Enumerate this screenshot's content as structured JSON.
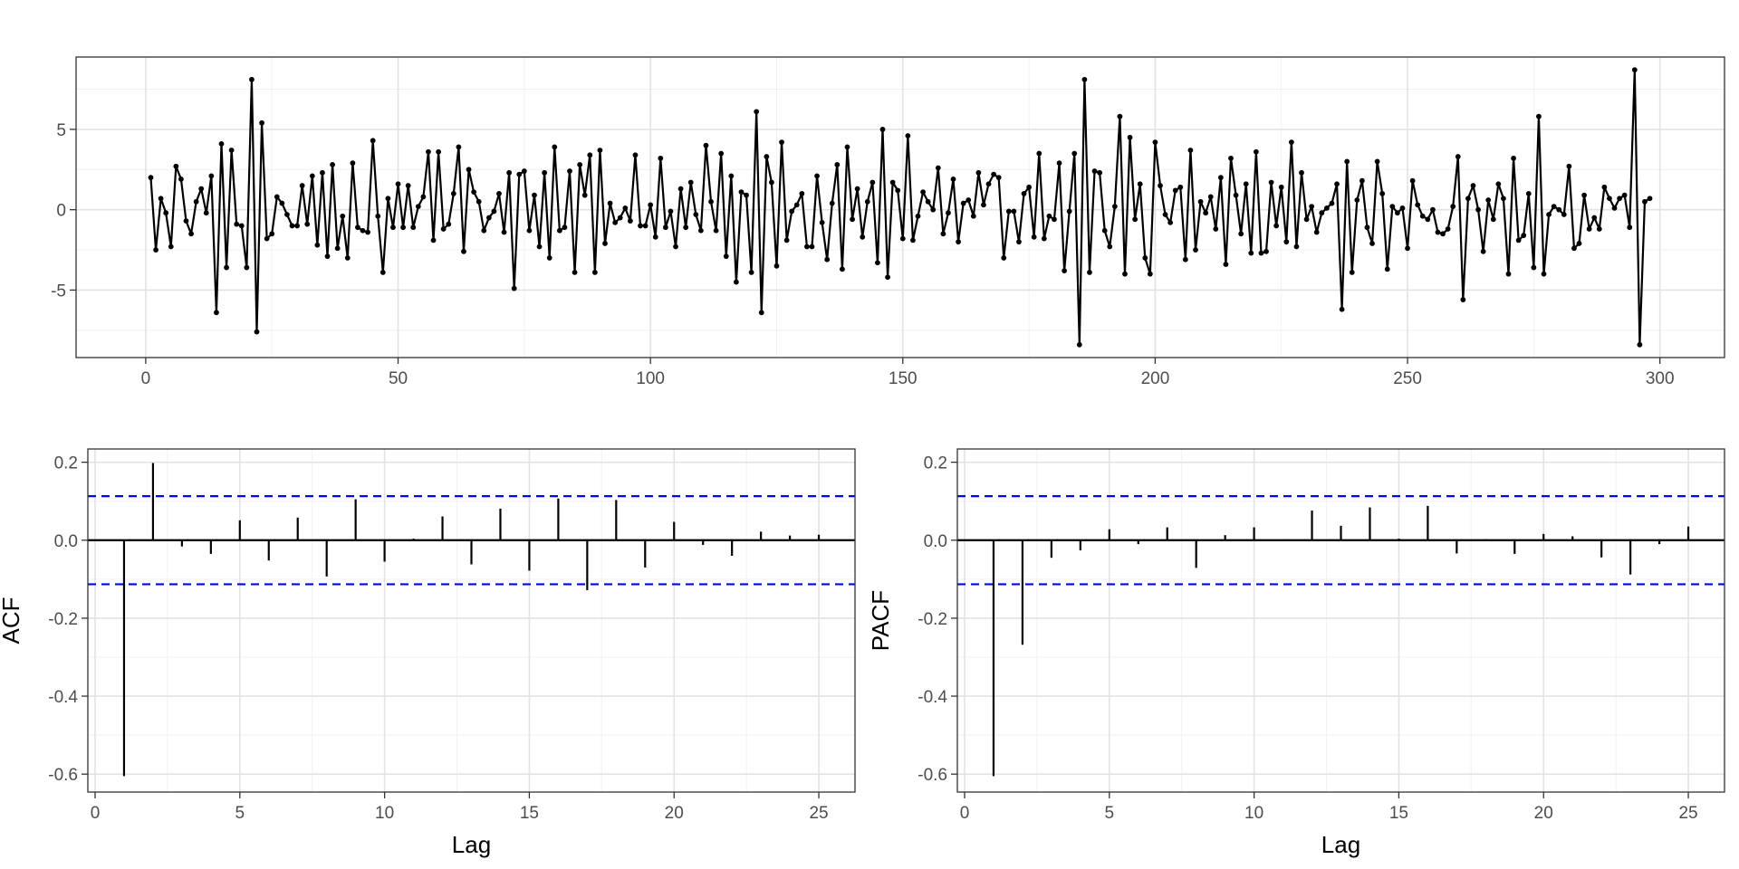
{
  "chart_data": [
    {
      "type": "line",
      "title": "",
      "xlabel": "",
      "ylabel": "",
      "xlim": [
        -13.8,
        312.8
      ],
      "ylim": [
        -9.2,
        9.5
      ],
      "xticks": [
        0,
        50,
        100,
        150,
        200,
        250,
        300
      ],
      "yticks": [
        -5,
        0,
        5
      ],
      "grid": true,
      "point_color": "#000000",
      "series": [
        {
          "x": [
            1,
            2,
            3,
            4,
            5,
            6,
            7,
            8,
            9,
            10,
            11,
            12,
            13,
            14,
            15,
            16,
            17,
            18,
            19,
            20,
            21,
            22,
            23,
            24,
            25,
            26,
            27,
            28,
            29,
            30,
            31,
            32,
            33,
            34,
            35,
            36,
            37,
            38,
            39,
            40,
            41,
            42,
            43,
            44,
            45,
            46,
            47,
            48,
            49,
            50,
            51,
            52,
            53,
            54,
            55,
            56,
            57,
            58,
            59,
            60,
            61,
            62,
            63,
            64,
            65,
            66,
            67,
            68,
            69,
            70,
            71,
            72,
            73,
            74,
            75,
            76,
            77,
            78,
            79,
            80,
            81,
            82,
            83,
            84,
            85,
            86,
            87,
            88,
            89,
            90,
            91,
            92,
            93,
            94,
            95,
            96,
            97,
            98,
            99,
            100,
            101,
            102,
            103,
            104,
            105,
            106,
            107,
            108,
            109,
            110,
            111,
            112,
            113,
            114,
            115,
            116,
            117,
            118,
            119,
            120,
            121,
            122,
            123,
            124,
            125,
            126,
            127,
            128,
            129,
            130,
            131,
            132,
            133,
            134,
            135,
            136,
            137,
            138,
            139,
            140,
            141,
            142,
            143,
            144,
            145,
            146,
            147,
            148,
            149,
            150,
            151,
            152,
            153,
            154,
            155,
            156,
            157,
            158,
            159,
            160,
            161,
            162,
            163,
            164,
            165,
            166,
            167,
            168,
            169,
            170,
            171,
            172,
            173,
            174,
            175,
            176,
            177,
            178,
            179,
            180,
            181,
            182,
            183,
            184,
            185,
            186,
            187,
            188,
            189,
            190,
            191,
            192,
            193,
            194,
            195,
            196,
            197,
            198,
            199,
            200,
            201,
            202,
            203,
            204,
            205,
            206,
            207,
            208,
            209,
            210,
            211,
            212,
            213,
            214,
            215,
            216,
            217,
            218,
            219,
            220,
            221,
            222,
            223,
            224,
            225,
            226,
            227,
            228,
            229,
            230,
            231,
            232,
            233,
            234,
            235,
            236,
            237,
            238,
            239,
            240,
            241,
            242,
            243,
            244,
            245,
            246,
            247,
            248,
            249,
            250,
            251,
            252,
            253,
            254,
            255,
            256,
            257,
            258,
            259,
            260,
            261,
            262,
            263,
            264,
            265,
            266,
            267,
            268,
            269,
            270,
            271,
            272,
            273,
            274,
            275,
            276,
            277,
            278,
            279,
            280,
            281,
            282,
            283,
            284,
            285,
            286,
            287,
            288,
            289,
            290,
            291,
            292,
            293,
            294,
            295,
            296,
            297,
            298
          ],
          "values": [
            2.0,
            -2.5,
            0.7,
            -0.2,
            -2.3,
            2.7,
            1.9,
            -0.7,
            -1.5,
            0.5,
            1.3,
            -0.2,
            2.1,
            -6.4,
            4.1,
            -3.6,
            3.7,
            -0.9,
            -1.0,
            -3.6,
            8.1,
            -7.6,
            5.4,
            -1.8,
            -1.5,
            0.8,
            0.4,
            -0.3,
            -1.0,
            -1.0,
            1.5,
            -0.9,
            2.1,
            -2.2,
            2.3,
            -2.9,
            2.8,
            -2.4,
            -0.4,
            -3.0,
            2.9,
            -1.1,
            -1.3,
            -1.4,
            4.3,
            -0.4,
            -3.9,
            0.7,
            -1.1,
            1.6,
            -1.1,
            1.5,
            -1.1,
            0.2,
            0.8,
            3.6,
            -1.9,
            3.6,
            -1.2,
            -0.9,
            1.0,
            3.9,
            -2.6,
            2.5,
            1.1,
            0.5,
            -1.3,
            -0.5,
            -0.1,
            1.0,
            -1.4,
            2.3,
            -4.9,
            2.2,
            2.4,
            -1.3,
            0.9,
            -2.3,
            2.3,
            -3.0,
            3.9,
            -1.3,
            -1.1,
            2.4,
            -3.9,
            2.8,
            0.9,
            3.4,
            -3.9,
            3.7,
            -2.1,
            0.4,
            -0.8,
            -0.5,
            0.1,
            -0.7,
            3.4,
            -1.0,
            -1.0,
            0.3,
            -1.7,
            3.2,
            -1.1,
            -0.1,
            -2.3,
            1.3,
            -1.1,
            1.7,
            -0.3,
            -1.3,
            4.0,
            0.5,
            -1.3,
            3.5,
            -2.9,
            2.1,
            -4.5,
            1.1,
            0.9,
            -3.9,
            6.1,
            -6.4,
            3.3,
            1.7,
            -3.5,
            4.2,
            -1.9,
            -0.1,
            0.3,
            1.0,
            -2.3,
            -2.3,
            2.1,
            -0.8,
            -3.1,
            0.4,
            2.8,
            -3.7,
            3.9,
            -0.6,
            1.3,
            -1.7,
            0.5,
            1.7,
            -3.3,
            5.0,
            -4.2,
            1.7,
            1.2,
            -1.8,
            4.6,
            -1.9,
            -0.4,
            1.1,
            0.5,
            0.0,
            2.6,
            -1.5,
            -0.2,
            1.9,
            -2.0,
            0.4,
            0.6,
            -0.4,
            2.3,
            0.3,
            1.6,
            2.2,
            2.0,
            -3.0,
            -0.1,
            -0.1,
            -2.0,
            1.0,
            1.4,
            -1.7,
            3.5,
            -1.8,
            -0.4,
            -0.6,
            2.9,
            -3.8,
            -0.1,
            3.5,
            -8.4,
            8.1,
            -3.9,
            2.4,
            2.3,
            -1.3,
            -2.3,
            0.2,
            5.8,
            -4.0,
            4.5,
            -0.6,
            1.6,
            -3.0,
            -4.0,
            4.2,
            1.5,
            -0.3,
            -0.8,
            1.2,
            1.4,
            -3.1,
            3.7,
            -2.5,
            0.5,
            -0.2,
            0.8,
            -1.2,
            2.0,
            -3.4,
            3.2,
            0.9,
            -1.5,
            1.6,
            -2.7,
            3.6,
            -2.7,
            -2.6,
            1.7,
            -1.0,
            1.4,
            -2.0,
            4.2,
            -2.3,
            2.3,
            -0.6,
            0.2,
            -1.4,
            -0.2,
            0.1,
            0.4,
            1.6,
            -6.2,
            3.0,
            -3.9,
            0.6,
            1.8,
            -1.1,
            -2.1,
            3.0,
            1.0,
            -3.7,
            0.2,
            -0.2,
            0.1,
            -2.4,
            1.8,
            0.3,
            -0.4,
            -0.6,
            0.0,
            -1.4,
            -1.5,
            -1.2,
            0.2,
            3.3,
            -5.6,
            0.7,
            1.5,
            0.0,
            -2.6,
            0.6,
            -0.6,
            1.6,
            0.7,
            -4.0,
            3.2,
            -1.9,
            -1.6,
            1.0,
            -3.6,
            5.8,
            -4.0,
            -0.3,
            0.2,
            0.0,
            -0.3,
            2.7,
            -2.4,
            -2.1,
            0.9,
            -1.2,
            -0.5,
            -1.2,
            1.4,
            0.7,
            0.1,
            0.7,
            0.9,
            -1.1,
            8.7,
            -8.4,
            0.5,
            0.7
          ]
        }
      ]
    },
    {
      "type": "bar",
      "title": "",
      "xlabel": "Lag",
      "ylabel": "ACF",
      "xlim": [
        -0.25,
        26.25
      ],
      "ylim": [
        -0.646,
        0.234
      ],
      "xticks": [
        0,
        5,
        10,
        15,
        20,
        25
      ],
      "yticks": [
        0.2,
        0.0,
        -0.2,
        -0.4,
        -0.6
      ],
      "ytick_labels": [
        "0.2",
        "0.0",
        "-0.2",
        "-0.4",
        "-0.6"
      ],
      "grid": true,
      "confidence_limit": 0.113,
      "confidence_color": "#0000ff",
      "categories": [
        1,
        2,
        3,
        4,
        5,
        6,
        7,
        8,
        9,
        10,
        11,
        12,
        13,
        14,
        15,
        16,
        17,
        18,
        19,
        20,
        21,
        22,
        23,
        24,
        25
      ],
      "values": [
        -0.605,
        0.198,
        -0.016,
        -0.035,
        0.051,
        -0.052,
        0.058,
        -0.093,
        0.105,
        -0.055,
        0.004,
        0.061,
        -0.062,
        0.081,
        -0.078,
        0.107,
        -0.128,
        0.103,
        -0.07,
        0.047,
        -0.012,
        -0.04,
        0.022,
        0.012,
        0.014
      ]
    },
    {
      "type": "bar",
      "title": "",
      "xlabel": "Lag",
      "ylabel": "PACF",
      "xlim": [
        -0.25,
        26.25
      ],
      "ylim": [
        -0.646,
        0.234
      ],
      "xticks": [
        0,
        5,
        10,
        15,
        20,
        25
      ],
      "yticks": [
        0.2,
        0.0,
        -0.2,
        -0.4,
        -0.6
      ],
      "ytick_labels": [
        "0.2",
        "0.0",
        "-0.2",
        "-0.4",
        "-0.6"
      ],
      "grid": true,
      "confidence_limit": 0.113,
      "confidence_color": "#0000ff",
      "categories": [
        1,
        2,
        3,
        4,
        5,
        6,
        7,
        8,
        9,
        10,
        11,
        12,
        13,
        14,
        15,
        16,
        17,
        18,
        19,
        20,
        21,
        22,
        23,
        24,
        25
      ],
      "values": [
        -0.605,
        -0.268,
        -0.045,
        -0.026,
        0.028,
        -0.01,
        0.033,
        -0.071,
        0.013,
        0.033,
        0.002,
        0.076,
        0.037,
        0.084,
        0.004,
        0.088,
        -0.034,
        0.003,
        -0.035,
        0.016,
        0.01,
        -0.044,
        -0.088,
        -0.01,
        0.035
      ]
    }
  ]
}
